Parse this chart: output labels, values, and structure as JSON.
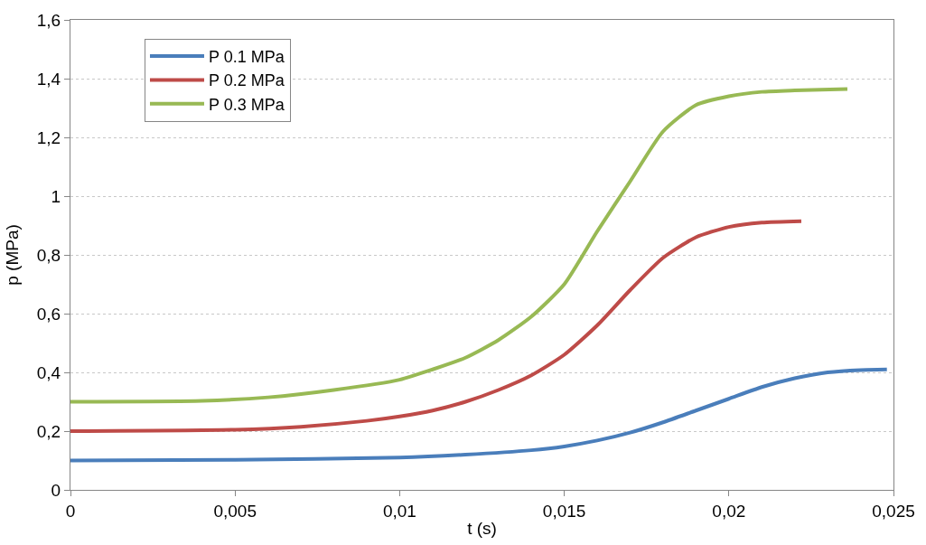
{
  "chart_data": {
    "type": "line",
    "xlabel": "t (s)",
    "ylabel": "p (MPa)",
    "xlim": [
      0,
      0.025
    ],
    "xticks": [
      0,
      {
        "value": 0.005,
        "label": "0,005"
      },
      {
        "value": 0.01,
        "label": "0,01"
      },
      {
        "value": 0.015,
        "label": "0,015"
      },
      {
        "value": 0.02,
        "label": "0,02"
      },
      {
        "value": 0.025,
        "label": "0,025"
      }
    ],
    "ylim": [
      0,
      1.6
    ],
    "yticks": [
      0,
      {
        "value": 0.2,
        "label": "0,2"
      },
      {
        "value": 0.4,
        "label": "0,4"
      },
      {
        "value": 0.6,
        "label": "0,6"
      },
      {
        "value": 0.8,
        "label": "0,8"
      },
      1,
      {
        "value": 1.2,
        "label": "1,2"
      },
      {
        "value": 1.4,
        "label": "1,4"
      },
      {
        "value": 1.6,
        "label": "1,6"
      }
    ],
    "grid": "y",
    "legend": "top left",
    "marker": "none",
    "line_style": "solid",
    "series": [
      {
        "name": "P 0.1 MPa",
        "color": "#4a7ebb",
        "x": [
          0,
          0.005,
          0.01,
          0.012,
          0.014,
          0.015,
          0.016,
          0.017,
          0.018,
          0.019,
          0.02,
          0.021,
          0.022,
          0.023,
          0.024,
          0.0248
        ],
        "values": [
          0.1,
          0.102,
          0.11,
          0.12,
          0.135,
          0.148,
          0.168,
          0.195,
          0.23,
          0.27,
          0.31,
          0.35,
          0.38,
          0.4,
          0.408,
          0.41
        ]
      },
      {
        "name": "P 0.2 MPa",
        "color": "#be4b48",
        "x": [
          0,
          0.005,
          0.007,
          0.009,
          0.01,
          0.011,
          0.012,
          0.013,
          0.014,
          0.015,
          0.016,
          0.017,
          0.018,
          0.019,
          0.02,
          0.021,
          0.0222
        ],
        "values": [
          0.2,
          0.205,
          0.215,
          0.235,
          0.25,
          0.27,
          0.3,
          0.34,
          0.39,
          0.46,
          0.56,
          0.68,
          0.79,
          0.86,
          0.895,
          0.91,
          0.915
        ]
      },
      {
        "name": "P 0.3 MPa",
        "color": "#98b954",
        "x": [
          0,
          0.004,
          0.006,
          0.008,
          0.01,
          0.011,
          0.012,
          0.013,
          0.014,
          0.015,
          0.016,
          0.017,
          0.018,
          0.019,
          0.02,
          0.021,
          0.022,
          0.0236
        ],
        "values": [
          0.3,
          0.303,
          0.315,
          0.34,
          0.375,
          0.41,
          0.45,
          0.51,
          0.59,
          0.7,
          0.88,
          1.05,
          1.22,
          1.31,
          1.34,
          1.355,
          1.36,
          1.365
        ]
      }
    ]
  }
}
